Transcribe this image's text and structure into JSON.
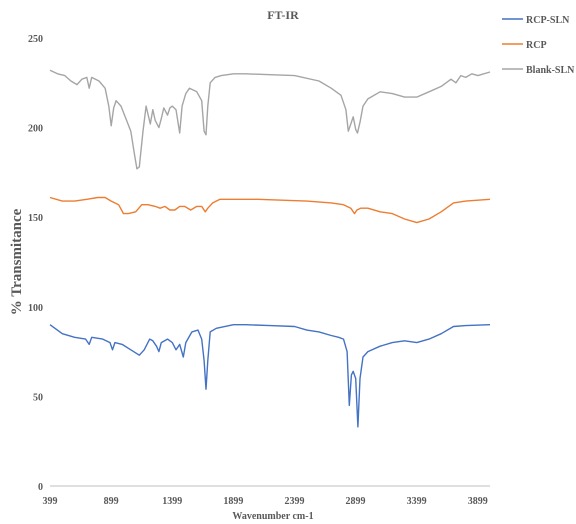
{
  "chart_data": {
    "type": "line",
    "title": "FT-IR",
    "xlabel": "Wavenumber cm-1",
    "ylabel": "% Transmitance",
    "xlim": [
      399,
      3999
    ],
    "ylim": [
      0,
      250
    ],
    "x_ticks": [
      399,
      899,
      1399,
      1899,
      2399,
      2899,
      3399,
      3899
    ],
    "y_ticks": [
      0,
      50,
      100,
      150,
      200,
      250
    ],
    "grid": false,
    "legend_position": "top-right",
    "series": [
      {
        "name": "RCP-SLN",
        "color": "#4472C4",
        "points": [
          [
            399,
            90
          ],
          [
            500,
            85
          ],
          [
            600,
            83
          ],
          [
            690,
            82
          ],
          [
            720,
            79
          ],
          [
            740,
            83
          ],
          [
            830,
            82
          ],
          [
            890,
            80
          ],
          [
            910,
            76
          ],
          [
            930,
            80
          ],
          [
            990,
            79
          ],
          [
            1060,
            76
          ],
          [
            1130,
            73
          ],
          [
            1170,
            76
          ],
          [
            1215,
            82
          ],
          [
            1240,
            81
          ],
          [
            1270,
            78
          ],
          [
            1290,
            75
          ],
          [
            1310,
            80
          ],
          [
            1360,
            82
          ],
          [
            1400,
            80
          ],
          [
            1430,
            76
          ],
          [
            1460,
            79
          ],
          [
            1490,
            72
          ],
          [
            1510,
            80
          ],
          [
            1560,
            86
          ],
          [
            1610,
            87
          ],
          [
            1640,
            82
          ],
          [
            1660,
            70
          ],
          [
            1675,
            54
          ],
          [
            1690,
            70
          ],
          [
            1710,
            86
          ],
          [
            1760,
            88
          ],
          [
            1900,
            90
          ],
          [
            2000,
            90
          ],
          [
            2200,
            89.5
          ],
          [
            2400,
            89
          ],
          [
            2500,
            87
          ],
          [
            2600,
            86
          ],
          [
            2700,
            84
          ],
          [
            2760,
            83
          ],
          [
            2800,
            82
          ],
          [
            2830,
            75
          ],
          [
            2848,
            45
          ],
          [
            2865,
            62
          ],
          [
            2880,
            64
          ],
          [
            2900,
            60
          ],
          [
            2918,
            33
          ],
          [
            2935,
            60
          ],
          [
            2960,
            72
          ],
          [
            3000,
            75
          ],
          [
            3100,
            78
          ],
          [
            3200,
            80
          ],
          [
            3300,
            81
          ],
          [
            3400,
            80
          ],
          [
            3500,
            82
          ],
          [
            3600,
            85
          ],
          [
            3700,
            89
          ],
          [
            3800,
            89.5
          ],
          [
            3999,
            90
          ]
        ]
      },
      {
        "name": "RCP",
        "color": "#ED7D31",
        "points": [
          [
            399,
            161
          ],
          [
            500,
            159
          ],
          [
            600,
            159
          ],
          [
            700,
            160
          ],
          [
            790,
            161
          ],
          [
            850,
            161
          ],
          [
            900,
            159
          ],
          [
            960,
            157
          ],
          [
            1000,
            152
          ],
          [
            1040,
            152
          ],
          [
            1100,
            153
          ],
          [
            1150,
            157
          ],
          [
            1200,
            157
          ],
          [
            1260,
            156
          ],
          [
            1300,
            155
          ],
          [
            1340,
            156
          ],
          [
            1380,
            154
          ],
          [
            1420,
            154
          ],
          [
            1460,
            156
          ],
          [
            1500,
            156
          ],
          [
            1550,
            154
          ],
          [
            1600,
            156
          ],
          [
            1640,
            156
          ],
          [
            1670,
            153
          ],
          [
            1690,
            155
          ],
          [
            1730,
            158
          ],
          [
            1790,
            160
          ],
          [
            1900,
            160
          ],
          [
            2100,
            160
          ],
          [
            2300,
            159.5
          ],
          [
            2500,
            159
          ],
          [
            2700,
            158
          ],
          [
            2800,
            157
          ],
          [
            2860,
            155
          ],
          [
            2890,
            152
          ],
          [
            2910,
            154
          ],
          [
            2940,
            155
          ],
          [
            3000,
            155
          ],
          [
            3100,
            153
          ],
          [
            3200,
            152
          ],
          [
            3300,
            149
          ],
          [
            3400,
            147
          ],
          [
            3500,
            149
          ],
          [
            3600,
            153
          ],
          [
            3700,
            158
          ],
          [
            3800,
            159
          ],
          [
            3999,
            160
          ]
        ]
      },
      {
        "name": "Blank-SLN",
        "color": "#A5A5A5",
        "points": [
          [
            399,
            232
          ],
          [
            460,
            230
          ],
          [
            520,
            229
          ],
          [
            570,
            226
          ],
          [
            620,
            224
          ],
          [
            660,
            227
          ],
          [
            700,
            228
          ],
          [
            720,
            222
          ],
          [
            740,
            228
          ],
          [
            800,
            226
          ],
          [
            850,
            222
          ],
          [
            880,
            212
          ],
          [
            900,
            201
          ],
          [
            920,
            211
          ],
          [
            940,
            215
          ],
          [
            980,
            212
          ],
          [
            1020,
            205
          ],
          [
            1060,
            198
          ],
          [
            1090,
            185
          ],
          [
            1110,
            177
          ],
          [
            1130,
            178
          ],
          [
            1160,
            198
          ],
          [
            1185,
            212
          ],
          [
            1220,
            202
          ],
          [
            1240,
            210
          ],
          [
            1260,
            204
          ],
          [
            1290,
            200
          ],
          [
            1310,
            205
          ],
          [
            1330,
            211
          ],
          [
            1360,
            207
          ],
          [
            1380,
            211
          ],
          [
            1400,
            212
          ],
          [
            1430,
            210
          ],
          [
            1460,
            197
          ],
          [
            1480,
            212
          ],
          [
            1510,
            219
          ],
          [
            1540,
            222
          ],
          [
            1600,
            220
          ],
          [
            1640,
            215
          ],
          [
            1660,
            198
          ],
          [
            1675,
            196
          ],
          [
            1690,
            212
          ],
          [
            1710,
            225
          ],
          [
            1750,
            228
          ],
          [
            1800,
            229
          ],
          [
            1900,
            230
          ],
          [
            2000,
            230
          ],
          [
            2200,
            229.5
          ],
          [
            2400,
            229
          ],
          [
            2600,
            226
          ],
          [
            2700,
            222
          ],
          [
            2780,
            218
          ],
          [
            2820,
            210
          ],
          [
            2840,
            198
          ],
          [
            2860,
            202
          ],
          [
            2880,
            206
          ],
          [
            2900,
            199
          ],
          [
            2915,
            197
          ],
          [
            2935,
            203
          ],
          [
            2960,
            212
          ],
          [
            3000,
            216
          ],
          [
            3100,
            220
          ],
          [
            3200,
            219
          ],
          [
            3300,
            217
          ],
          [
            3400,
            217
          ],
          [
            3500,
            220
          ],
          [
            3600,
            223
          ],
          [
            3680,
            227
          ],
          [
            3720,
            225
          ],
          [
            3760,
            229
          ],
          [
            3800,
            228
          ],
          [
            3850,
            230
          ],
          [
            3900,
            229
          ],
          [
            3999,
            231
          ]
        ]
      }
    ]
  }
}
